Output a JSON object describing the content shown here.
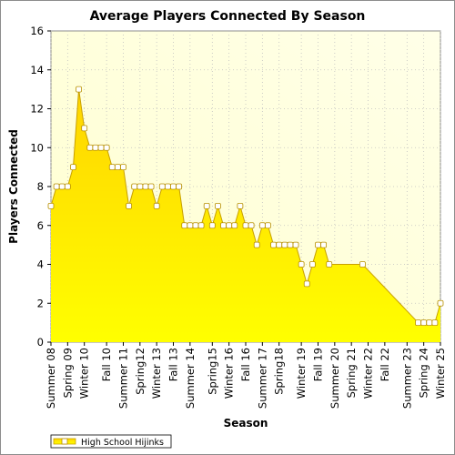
{
  "chart_data": {
    "type": "area",
    "title": "Average Players Connected By Season",
    "xlabel": "Season",
    "ylabel": "Players Connected",
    "ylim": [
      0,
      16
    ],
    "yticks": [
      0,
      2,
      4,
      6,
      8,
      10,
      12,
      14,
      16
    ],
    "grid": true,
    "legend_position": "bottom-left",
    "colors": {
      "fill_top": "#ffd400",
      "fill_bottom": "#ffff00",
      "line": "#c8a000",
      "marker_fill": "#ffffff",
      "marker_stroke": "#b89000",
      "plot_background": "#ffffe0",
      "grid": "#c0c0c0"
    },
    "x_tick_labels": [
      "Summer 08",
      "Spring 09",
      "Winter 10",
      "Fall 10",
      "Summer 11",
      "Spring12",
      "Winter 13",
      "Fall 13",
      "Summer 14",
      "Spring15",
      "Winter 16",
      "Fall 16",
      "Summer 17",
      "Spring18",
      "Winter 19",
      "Fall 19",
      "Summer 20",
      "Spring 21",
      "Winter 22",
      "Fall 22",
      "Summer 23",
      "Spring 24",
      "Winter 25"
    ],
    "series": [
      {
        "name": "High School Hijinks",
        "values": [
          7,
          8,
          8,
          8,
          9,
          13,
          11,
          10,
          10,
          10,
          10,
          9,
          9,
          9,
          7,
          8,
          8,
          8,
          8,
          7,
          8,
          8,
          8,
          8,
          6,
          6,
          6,
          6,
          7,
          6,
          7,
          6,
          6,
          6,
          7,
          6,
          6,
          5,
          6,
          6,
          5,
          5,
          5,
          5,
          5,
          4,
          3,
          4,
          5,
          5,
          4,
          null,
          null,
          null,
          null,
          null,
          4,
          null,
          null,
          null,
          null,
          null,
          null,
          null,
          null,
          null,
          1,
          1,
          1,
          1,
          2
        ]
      }
    ]
  }
}
